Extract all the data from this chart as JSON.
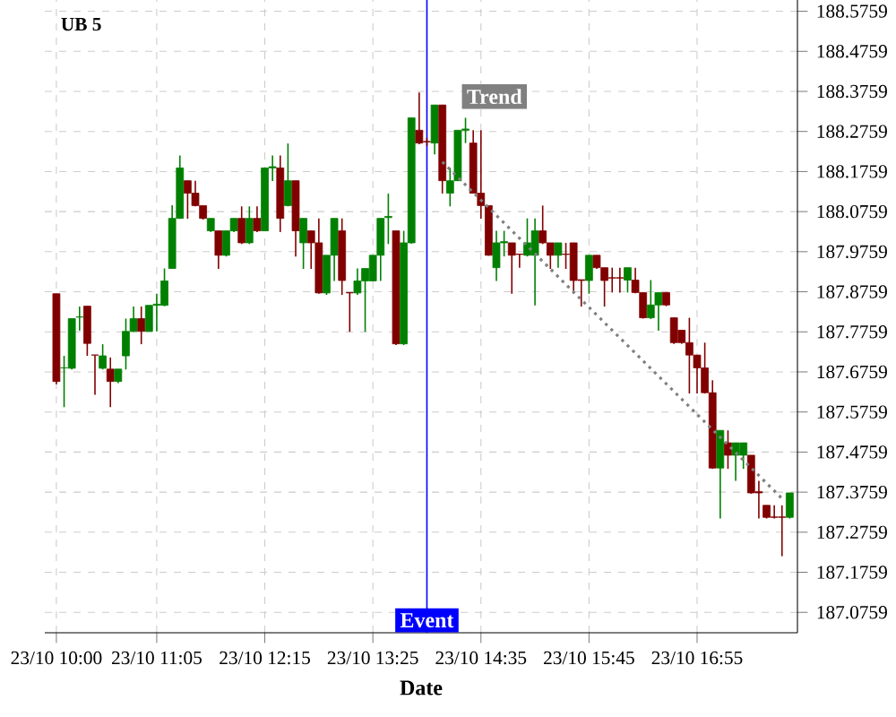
{
  "chart_data": {
    "type": "candlestick",
    "title": "UB 5",
    "xlabel": "Date",
    "categories": [
      "23/10 10:00",
      null,
      null,
      null,
      null,
      null,
      null,
      null,
      null,
      null,
      null,
      null,
      null,
      "23/10 11:05",
      null,
      null,
      null,
      null,
      null,
      null,
      null,
      null,
      null,
      null,
      null,
      null,
      null,
      "23/10 12:15",
      null,
      null,
      null,
      null,
      null,
      null,
      null,
      null,
      null,
      null,
      null,
      null,
      null,
      "23/10 13:25",
      null,
      null,
      null,
      null,
      null,
      null,
      null,
      null,
      null,
      null,
      null,
      null,
      null,
      "23/10 14:35",
      null,
      null,
      null,
      null,
      null,
      null,
      null,
      null,
      null,
      null,
      null,
      null,
      null,
      "23/10 15:45",
      null,
      null,
      null,
      null,
      null,
      null,
      null,
      null,
      null,
      null,
      null,
      null,
      null,
      "23/10 16:55",
      null,
      null,
      null,
      null,
      null,
      null,
      null,
      null,
      null,
      null,
      null,
      null
    ],
    "ohlc": [
      [
        187.871,
        187.871,
        187.645,
        187.652
      ],
      [
        187.686,
        187.716,
        187.588,
        187.686
      ],
      [
        187.685,
        187.809,
        187.682,
        187.809
      ],
      [
        187.813,
        187.839,
        187.779,
        187.813
      ],
      [
        187.84,
        187.84,
        187.716,
        187.747
      ],
      [
        187.718,
        187.718,
        187.619,
        187.718
      ],
      [
        187.685,
        187.745,
        187.682,
        187.716
      ],
      [
        187.683,
        187.712,
        187.588,
        187.652
      ],
      [
        187.652,
        187.683,
        187.648,
        187.683
      ],
      [
        187.716,
        187.809,
        187.682,
        187.777
      ],
      [
        187.777,
        187.839,
        187.776,
        187.809
      ],
      [
        187.809,
        187.839,
        187.745,
        187.777
      ],
      [
        187.777,
        187.842,
        187.777,
        187.842
      ],
      [
        187.842,
        187.871,
        187.777,
        187.845
      ],
      [
        187.842,
        187.934,
        187.84,
        187.903
      ],
      [
        187.934,
        188.092,
        187.933,
        188.059
      ],
      [
        188.059,
        188.216,
        188.058,
        188.185
      ],
      [
        188.153,
        188.153,
        188.058,
        188.122
      ],
      [
        188.122,
        188.153,
        188.089,
        188.091
      ],
      [
        188.091,
        188.091,
        188.056,
        188.059
      ],
      [
        188.028,
        188.059,
        188.025,
        188.059
      ],
      [
        188.028,
        188.028,
        187.933,
        187.967
      ],
      [
        187.967,
        188.028,
        187.964,
        188.028
      ],
      [
        188.028,
        188.059,
        188.025,
        188.059
      ],
      [
        188.059,
        188.089,
        187.995,
        187.998
      ],
      [
        187.998,
        188.089,
        187.995,
        188.059
      ],
      [
        188.059,
        188.089,
        188.025,
        188.028
      ],
      [
        188.028,
        188.185,
        188.028,
        188.185
      ],
      [
        188.185,
        188.216,
        188.152,
        188.188
      ],
      [
        188.185,
        188.216,
        188.025,
        188.059
      ],
      [
        188.091,
        188.246,
        188.089,
        188.153
      ],
      [
        188.153,
        188.153,
        187.964,
        188.028
      ],
      [
        187.998,
        188.059,
        187.933,
        188.059
      ],
      [
        188.028,
        188.028,
        187.933,
        187.998
      ],
      [
        187.998,
        188.059,
        187.871,
        187.873
      ],
      [
        187.873,
        187.967,
        187.868,
        187.967
      ],
      [
        187.967,
        188.059,
        187.903,
        188.059
      ],
      [
        188.028,
        188.059,
        187.868,
        187.904
      ],
      [
        187.874,
        187.874,
        187.776,
        187.873
      ],
      [
        187.873,
        187.934,
        187.868,
        187.903
      ],
      [
        187.903,
        187.934,
        187.776,
        187.934
      ],
      [
        187.903,
        187.967,
        187.903,
        187.967
      ],
      [
        187.967,
        188.059,
        187.903,
        188.059
      ],
      [
        188.061,
        188.121,
        187.995,
        188.064
      ],
      [
        188.028,
        188.028,
        187.743,
        187.746
      ],
      [
        187.746,
        188.028,
        187.743,
        187.998
      ],
      [
        187.998,
        188.31,
        187.996,
        188.31
      ],
      [
        188.279,
        188.373,
        188.244,
        188.247
      ],
      [
        188.251,
        188.26,
        188.24,
        188.25
      ],
      [
        188.247,
        188.342,
        188.219,
        188.342
      ],
      [
        188.342,
        188.342,
        188.121,
        188.153
      ],
      [
        188.122,
        188.185,
        188.089,
        188.153
      ],
      [
        188.153,
        188.279,
        188.152,
        188.279
      ],
      [
        188.279,
        188.31,
        188.247,
        188.282
      ],
      [
        188.247,
        188.279,
        188.121,
        188.122
      ],
      [
        188.122,
        188.279,
        188.058,
        188.091
      ],
      [
        188.091,
        188.091,
        187.966,
        187.967
      ],
      [
        187.936,
        188.028,
        187.903,
        187.998
      ],
      [
        187.998,
        188.028,
        187.964,
        188.001
      ],
      [
        187.998,
        187.998,
        187.871,
        187.967
      ],
      [
        187.97,
        187.97,
        187.936,
        187.969
      ],
      [
        187.967,
        188.059,
        187.964,
        187.998
      ],
      [
        187.967,
        188.059,
        187.842,
        188.028
      ],
      [
        188.028,
        188.091,
        187.995,
        187.998
      ],
      [
        187.998,
        187.998,
        187.933,
        187.967
      ],
      [
        187.967,
        187.998,
        187.936,
        187.998
      ],
      [
        187.97,
        187.998,
        187.933,
        187.969
      ],
      [
        187.998,
        187.998,
        187.871,
        187.904
      ],
      [
        187.906,
        187.906,
        187.839,
        187.904
      ],
      [
        187.904,
        187.967,
        187.871,
        187.967
      ],
      [
        187.967,
        187.967,
        187.933,
        187.936
      ],
      [
        187.936,
        187.936,
        187.839,
        187.904
      ],
      [
        187.911,
        187.936,
        187.874,
        187.91
      ],
      [
        187.911,
        187.936,
        187.874,
        187.91
      ],
      [
        187.905,
        187.936,
        187.874,
        187.936
      ],
      [
        187.905,
        187.936,
        187.872,
        187.874
      ],
      [
        187.874,
        187.874,
        187.809,
        187.811
      ],
      [
        187.811,
        187.905,
        187.808,
        187.843
      ],
      [
        187.843,
        187.874,
        187.779,
        187.874
      ],
      [
        187.874,
        187.874,
        187.84,
        187.843
      ],
      [
        187.811,
        187.811,
        187.746,
        187.749
      ],
      [
        187.78,
        187.78,
        187.746,
        187.749
      ],
      [
        187.749,
        187.811,
        187.622,
        187.718
      ],
      [
        187.718,
        187.718,
        187.622,
        187.686
      ],
      [
        187.686,
        187.749,
        187.622,
        187.624
      ],
      [
        187.624,
        187.655,
        187.434,
        187.436
      ],
      [
        187.436,
        187.53,
        187.31,
        187.53
      ],
      [
        187.499,
        187.53,
        187.434,
        187.468
      ],
      [
        187.468,
        187.499,
        187.404,
        187.499
      ],
      [
        187.468,
        187.499,
        187.434,
        187.499
      ],
      [
        187.468,
        187.468,
        187.372,
        187.374
      ],
      [
        187.377,
        187.404,
        187.31,
        187.374
      ],
      [
        187.343,
        187.343,
        187.31,
        187.313
      ],
      [
        187.314,
        187.343,
        187.31,
        187.313
      ],
      [
        187.314,
        187.343,
        187.216,
        187.313
      ],
      [
        187.313,
        187.374,
        187.31,
        187.374
      ]
    ],
    "colors": [
      "#800000",
      "#008000",
      "#008000",
      "#008000",
      "#800000",
      "#800000",
      "#008000",
      "#800000",
      "#008000",
      "#008000",
      "#008000",
      "#800000",
      "#008000",
      "#008000",
      "#008000",
      "#008000",
      "#008000",
      "#800000",
      "#800000",
      "#800000",
      "#008000",
      "#800000",
      "#008000",
      "#008000",
      "#800000",
      "#008000",
      "#800000",
      "#008000",
      "#008000",
      "#800000",
      "#008000",
      "#800000",
      "#008000",
      "#800000",
      "#800000",
      "#008000",
      "#008000",
      "#800000",
      "#800000",
      "#008000",
      "#008000",
      "#008000",
      "#008000",
      "#008000",
      "#800000",
      "#008000",
      "#008000",
      "#800000",
      "#800000",
      "#008000",
      "#800000",
      "#008000",
      "#008000",
      "#008000",
      "#800000",
      "#800000",
      "#800000",
      "#008000",
      "#008000",
      "#800000",
      "#800000",
      "#008000",
      "#008000",
      "#800000",
      "#800000",
      "#008000",
      "#800000",
      "#800000",
      "#800000",
      "#008000",
      "#800000",
      "#800000",
      "#800000",
      "#800000",
      "#008000",
      "#800000",
      "#800000",
      "#008000",
      "#008000",
      "#800000",
      "#800000",
      "#800000",
      "#800000",
      "#800000",
      "#800000",
      "#800000",
      "#008000",
      "#800000",
      "#008000",
      "#008000",
      "#800000",
      "#800000",
      "#800000",
      "#800000",
      "#800000",
      "#008000"
    ],
    "series": [
      {
        "name": "Trend",
        "type": "line",
        "color": "#808080",
        "line_style": "dotted",
        "values": [
          null,
          null,
          null,
          null,
          null,
          null,
          null,
          null,
          null,
          null,
          null,
          null,
          null,
          null,
          null,
          null,
          null,
          null,
          null,
          null,
          null,
          null,
          null,
          null,
          null,
          null,
          null,
          null,
          null,
          null,
          null,
          null,
          null,
          null,
          null,
          null,
          null,
          null,
          null,
          null,
          null,
          null,
          null,
          null,
          null,
          null,
          null,
          null,
          null,
          null,
          188.2,
          null,
          null,
          null,
          null,
          null,
          null,
          null,
          null,
          null,
          null,
          null,
          null,
          null,
          null,
          null,
          null,
          null,
          null,
          null,
          null,
          null,
          null,
          null,
          null,
          null,
          null,
          null,
          null,
          null,
          null,
          null,
          null,
          null,
          null,
          null,
          null,
          null,
          null,
          null,
          null,
          null,
          null,
          null,
          187.36,
          null
        ]
      }
    ],
    "ylim": [
      187.025,
      188.604
    ],
    "yticks": [
      188.5759,
      188.4759,
      188.3759,
      188.2759,
      188.1759,
      188.0759,
      187.9759,
      187.8759,
      187.7759,
      187.6759,
      187.5759,
      187.4759,
      187.3759,
      187.2759,
      187.1759,
      187.0759
    ],
    "annotations": [
      "Event"
    ],
    "grid": true
  }
}
